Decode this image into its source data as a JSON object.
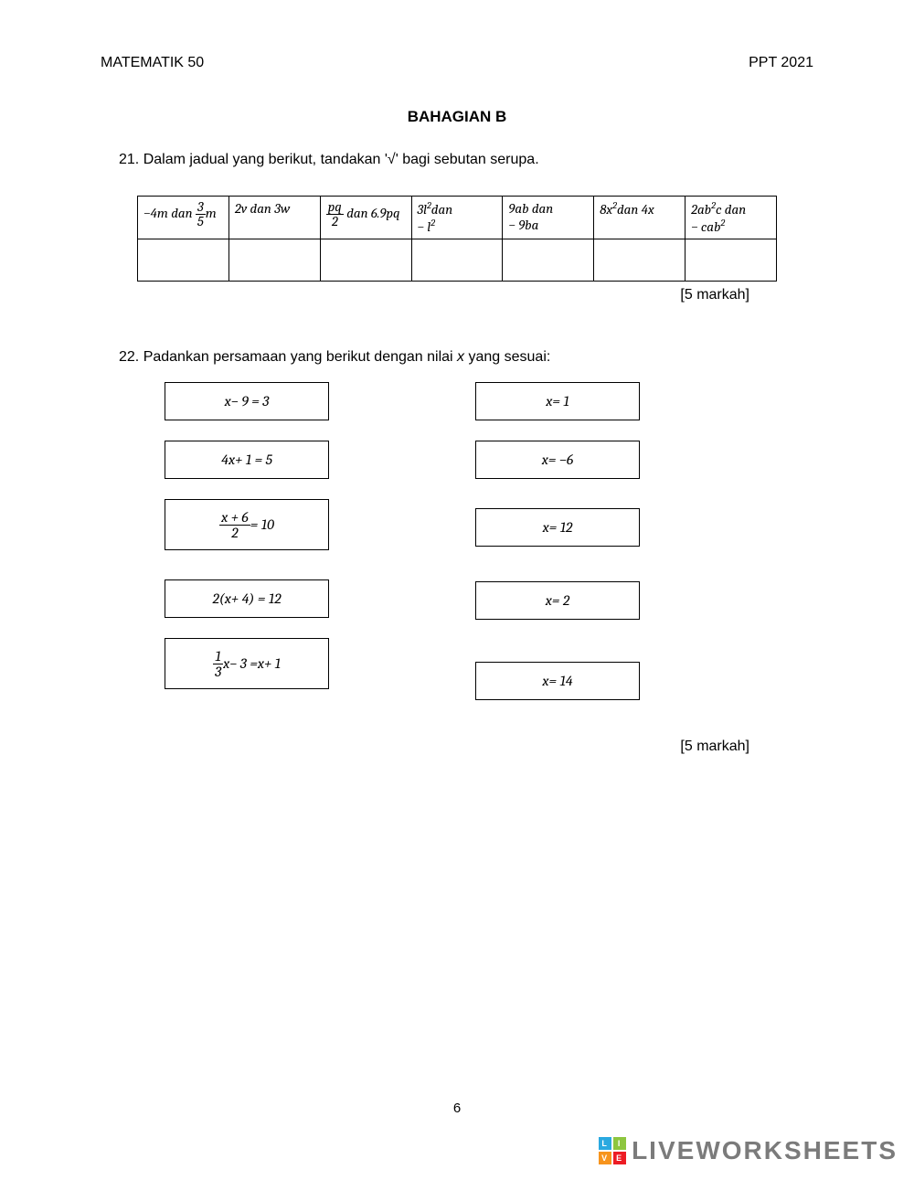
{
  "header": {
    "left": "MATEMATIK 50",
    "right": "PPT 2021"
  },
  "section_title": "BAHAGIAN B",
  "q21": {
    "text": "21. Dalam jadual yang berikut, tandakan '√' bagi sebutan serupa.",
    "cells": [
      "−4<i>m</i> <i>dan</i> <span class='frac'><span class='num'>3</span><span class='den'>5</span></span><i>m</i>",
      "2<i>v</i> <i>dan</i> 3<i>w</i>",
      "<span class='frac'><span class='num'><i>pq</i></span><span class='den'>2</span></span> <i>dan</i> 6.9<i>pq</i>",
      "3<i>l</i><span class='sup'>2</span><i>dan</i><br>− <i>l</i><span class='sup'>2</span>",
      "9<i>ab</i> <i>dan</i><br>− 9<i>ba</i>",
      "8<i>x</i><span class='sup'>2</span><i>dan</i> 4<i>x</i>",
      "2<i>ab</i><span class='sup'>2</span><i>c</i> <i>dan</i><br>− <i>cab</i><span class='sup'>2</span>"
    ],
    "marks": "[5 markah]"
  },
  "q22": {
    "text": "22. Padankan persamaan yang berikut dengan nilai <i>x</i> yang sesuai:",
    "left_boxes": [
      "<i>x</i> − 9 = 3",
      "4<i>x</i> + 1 = 5",
      "<span class='frac'><span class='num'><i>x</i> + 6</span><span class='den'>2</span></span> = 10",
      "2(<i>x</i> + 4) = 12",
      "<span class='frac'><span class='num'>1</span><span class='den'>3</span></span><i>x</i> − 3 = <i>x</i> + 1"
    ],
    "right_boxes": [
      "<i>x</i> = 1",
      "<i>x</i> = −6",
      "<i>x</i> = 12",
      "<i>x</i> = 2",
      "<i>x</i> = 14"
    ],
    "marks": "[5 markah]"
  },
  "page_number": "6",
  "watermark": {
    "text": "LIVEWORKSHEETS",
    "logo_colors": [
      "#2aa9e0",
      "#8dc63f",
      "#f7941d",
      "#ed1c24"
    ],
    "logo_letters": [
      "L",
      "I",
      "V",
      "E"
    ]
  },
  "colors": {
    "page_bg": "#ffffff",
    "text": "#000000",
    "wm_text": "#7b7b7b"
  }
}
